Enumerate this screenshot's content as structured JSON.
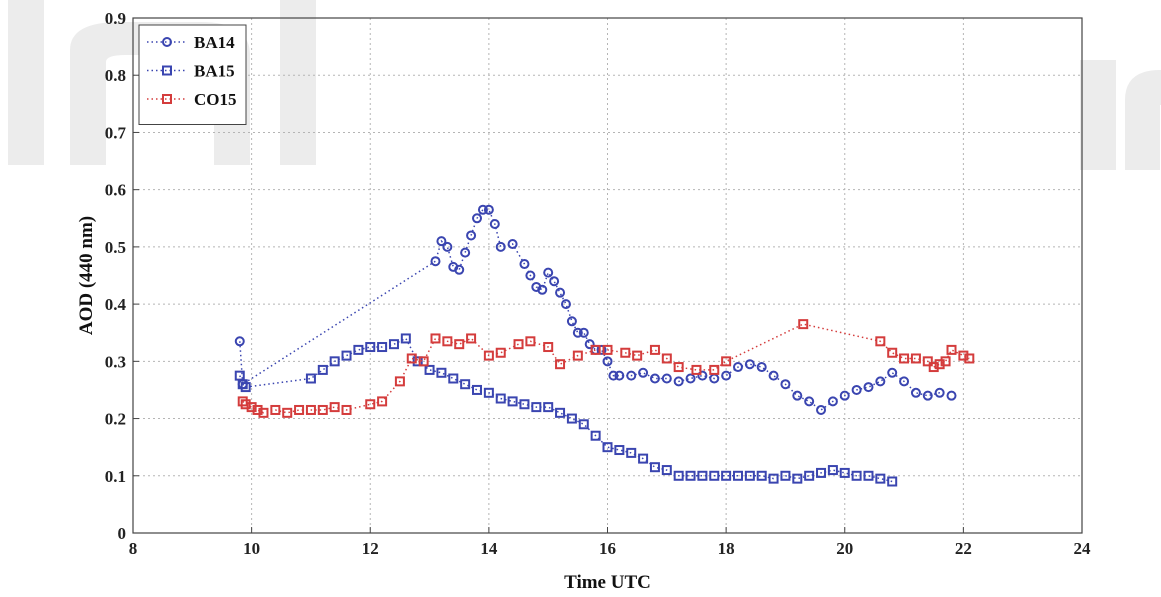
{
  "chart_data": {
    "type": "scatter",
    "xlabel": "Time UTC",
    "ylabel": "AOD (440 nm)",
    "xlim": [
      8,
      24
    ],
    "ylim": [
      0,
      0.9
    ],
    "xticks": [
      8,
      10,
      12,
      14,
      16,
      18,
      20,
      22,
      24
    ],
    "yticks": [
      0,
      0.1,
      0.2,
      0.3,
      0.4,
      0.5,
      0.6,
      0.7,
      0.8,
      0.9
    ],
    "grid": true,
    "legend_position": "top-left",
    "series": [
      {
        "name": "BA14",
        "marker": "circle",
        "color": "#3a45b0",
        "line": "dotted",
        "x": [
          9.8,
          9.85,
          13.1,
          13.2,
          13.3,
          13.4,
          13.5,
          13.6,
          13.7,
          13.8,
          13.9,
          14.0,
          14.1,
          14.2,
          14.4,
          14.6,
          14.7,
          14.8,
          14.9,
          15.0,
          15.1,
          15.2,
          15.3,
          15.4,
          15.5,
          15.6,
          15.7,
          15.8,
          15.9,
          16.0,
          16.1,
          16.2,
          16.4,
          16.6,
          16.8,
          17.0,
          17.2,
          17.4,
          17.6,
          17.8,
          18.0,
          18.2,
          18.4,
          18.6,
          18.8,
          19.0,
          19.2,
          19.4,
          19.6,
          19.8,
          20.0,
          20.2,
          20.4,
          20.6,
          20.8,
          21.0,
          21.2,
          21.4,
          21.6,
          21.8
        ],
        "y": [
          0.335,
          0.26,
          0.475,
          0.51,
          0.5,
          0.465,
          0.46,
          0.49,
          0.52,
          0.55,
          0.565,
          0.565,
          0.54,
          0.5,
          0.505,
          0.47,
          0.45,
          0.43,
          0.425,
          0.455,
          0.44,
          0.42,
          0.4,
          0.37,
          0.35,
          0.35,
          0.33,
          0.32,
          0.32,
          0.3,
          0.275,
          0.275,
          0.275,
          0.28,
          0.27,
          0.27,
          0.265,
          0.27,
          0.275,
          0.27,
          0.275,
          0.29,
          0.295,
          0.29,
          0.275,
          0.26,
          0.24,
          0.23,
          0.215,
          0.23,
          0.24,
          0.25,
          0.255,
          0.265,
          0.28,
          0.265,
          0.245,
          0.24,
          0.245,
          0.24
        ]
      },
      {
        "name": "BA15",
        "marker": "square",
        "color": "#3a45b0",
        "line": "dotted",
        "x": [
          9.8,
          9.85,
          9.9,
          11.0,
          11.2,
          11.4,
          11.6,
          11.8,
          12.0,
          12.2,
          12.4,
          12.6,
          12.8,
          13.0,
          13.2,
          13.4,
          13.6,
          13.8,
          14.0,
          14.2,
          14.4,
          14.6,
          14.8,
          15.0,
          15.2,
          15.4,
          15.6,
          15.8,
          16.0,
          16.2,
          16.4,
          16.6,
          16.8,
          17.0,
          17.2,
          17.4,
          17.6,
          17.8,
          18.0,
          18.2,
          18.4,
          18.6,
          18.8,
          19.0,
          19.2,
          19.4,
          19.6,
          19.8,
          20.0,
          20.2,
          20.4,
          20.6,
          20.8
        ],
        "y": [
          0.275,
          0.26,
          0.255,
          0.27,
          0.285,
          0.3,
          0.31,
          0.32,
          0.325,
          0.325,
          0.33,
          0.34,
          0.3,
          0.285,
          0.28,
          0.27,
          0.26,
          0.25,
          0.245,
          0.235,
          0.23,
          0.225,
          0.22,
          0.22,
          0.21,
          0.2,
          0.19,
          0.17,
          0.15,
          0.145,
          0.14,
          0.13,
          0.115,
          0.11,
          0.1,
          0.1,
          0.1,
          0.1,
          0.1,
          0.1,
          0.1,
          0.1,
          0.095,
          0.1,
          0.095,
          0.1,
          0.105,
          0.11,
          0.105,
          0.1,
          0.1,
          0.095,
          0.09
        ]
      },
      {
        "name": "CO15",
        "marker": "square",
        "color": "#d43c3c",
        "line": "dotted",
        "x": [
          9.85,
          9.9,
          10.0,
          10.1,
          10.2,
          10.4,
          10.6,
          10.8,
          11.0,
          11.2,
          11.4,
          11.6,
          12.0,
          12.2,
          12.5,
          12.7,
          12.9,
          13.1,
          13.3,
          13.5,
          13.7,
          14.0,
          14.2,
          14.5,
          14.7,
          15.0,
          15.2,
          15.5,
          15.8,
          16.0,
          16.3,
          16.5,
          16.8,
          17.0,
          17.2,
          17.5,
          17.8,
          18.0,
          19.3,
          20.6,
          20.8,
          21.0,
          21.2,
          21.4,
          21.5,
          21.6,
          21.7,
          21.8,
          22.0,
          22.1
        ],
        "y": [
          0.23,
          0.225,
          0.22,
          0.215,
          0.21,
          0.215,
          0.21,
          0.215,
          0.215,
          0.215,
          0.22,
          0.215,
          0.225,
          0.23,
          0.265,
          0.305,
          0.3,
          0.34,
          0.335,
          0.33,
          0.34,
          0.31,
          0.315,
          0.33,
          0.335,
          0.325,
          0.295,
          0.31,
          0.32,
          0.32,
          0.315,
          0.31,
          0.32,
          0.305,
          0.29,
          0.285,
          0.285,
          0.3,
          0.365,
          0.335,
          0.315,
          0.305,
          0.305,
          0.3,
          0.29,
          0.295,
          0.3,
          0.32,
          0.31,
          0.305
        ]
      }
    ]
  },
  "watermark": {
    "text": "In"
  }
}
